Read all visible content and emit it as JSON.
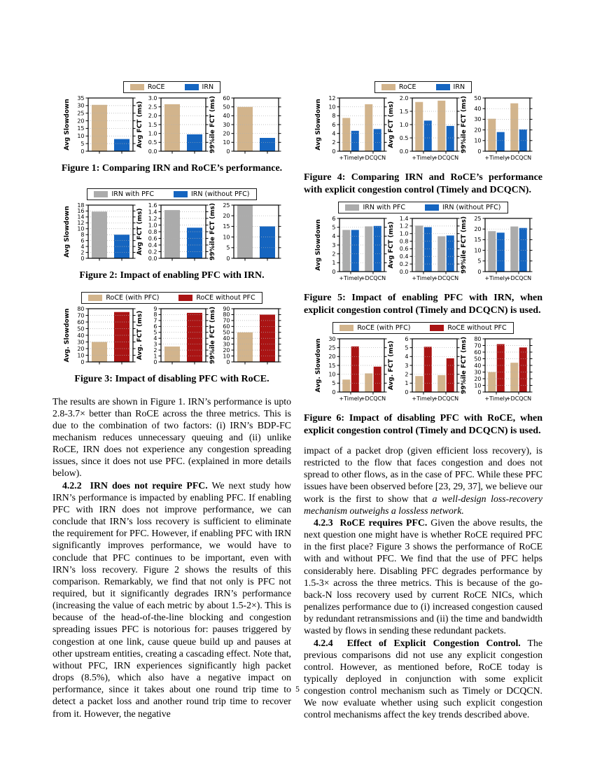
{
  "page_number": "5",
  "colors": {
    "tan": "#d2b48c",
    "blue": "#1565c0",
    "gray": "#ababab",
    "dark_red": "#aa1414"
  },
  "figures": [
    {
      "name": "figure-1",
      "legend": [
        {
          "label": "RoCE",
          "color": "#d2b48c"
        },
        {
          "label": "IRN",
          "color": "#1565c0"
        }
      ],
      "caption": "Figure 1: Comparing IRN and RoCE’s performance.",
      "subplots": [
        {
          "type": "bar",
          "ylabel": "Avg Slowdown",
          "ylim": [
            0,
            35
          ],
          "step": 5,
          "dec": 0,
          "values": [
            30.5,
            8
          ]
        },
        {
          "type": "bar",
          "ylabel": "Avg FCT (ms)",
          "ylim": [
            0,
            3.0
          ],
          "step": 0.5,
          "dec": 1,
          "values": [
            2.65,
            0.95
          ]
        },
        {
          "type": "bar",
          "ylabel": "99%ile FCT (ms)",
          "ylim": [
            0,
            60
          ],
          "step": 10,
          "dec": 0,
          "values": [
            50,
            15
          ]
        }
      ]
    },
    {
      "name": "figure-2",
      "legend": [
        {
          "label": "IRN with PFC",
          "color": "#ababab"
        },
        {
          "label": "IRN (without PFC)",
          "color": "#1565c0"
        }
      ],
      "caption": "Figure 2: Impact of enabling PFC with IRN.",
      "subplots": [
        {
          "type": "bar",
          "ylabel": "Avg Slowdown",
          "ylim": [
            0,
            18
          ],
          "step": 2,
          "dec": 0,
          "values": [
            15.8,
            8
          ]
        },
        {
          "type": "bar",
          "ylabel": "Avg FCT (ms)",
          "ylim": [
            0,
            1.6
          ],
          "step": 0.2,
          "dec": 1,
          "values": [
            1.45,
            0.92
          ]
        },
        {
          "type": "bar",
          "ylabel": "99%ile FCT (ms)",
          "ylim": [
            0,
            25
          ],
          "step": 5,
          "dec": 0,
          "values": [
            24.8,
            15
          ]
        }
      ]
    },
    {
      "name": "figure-3",
      "legend": [
        {
          "label": "RoCE (with PFC)",
          "color": "#d2b48c"
        },
        {
          "label": "RoCE without PFC",
          "color": "#aa1414"
        }
      ],
      "caption": "Figure 3: Impact of disabling PFC with RoCE.",
      "subplots": [
        {
          "type": "bar",
          "ylabel": "Avg. Slowdown",
          "ylim": [
            0,
            80
          ],
          "step": 10,
          "dec": 0,
          "values": [
            30,
            75
          ]
        },
        {
          "type": "bar",
          "ylabel": "Avg. FCT (ms)",
          "ylim": [
            0,
            9
          ],
          "step": 1,
          "dec": 0,
          "values": [
            2.6,
            8.3
          ]
        },
        {
          "type": "bar",
          "ylabel": "99%ile FCT (ms)",
          "ylim": [
            0,
            90
          ],
          "step": 10,
          "dec": 0,
          "values": [
            50,
            80
          ]
        }
      ]
    },
    {
      "name": "figure-4",
      "legend": [
        {
          "label": "RoCE",
          "color": "#d2b48c"
        },
        {
          "label": "IRN",
          "color": "#1565c0"
        }
      ],
      "caption": "Figure 4: Comparing IRN and RoCE’s performance with explicit congestion control (Timely and DCQCN).",
      "subplots": [
        {
          "type": "bar",
          "ylabel": "Avg Slowdown",
          "ylim": [
            0,
            12
          ],
          "step": 2,
          "dec": 0,
          "categories": [
            "+Timely",
            "+DCQCN"
          ],
          "series": [
            {
              "name": "RoCE",
              "values": [
                7.5,
                10.6
              ]
            },
            {
              "name": "IRN",
              "values": [
                4.6,
                5.0
              ]
            }
          ]
        },
        {
          "type": "bar",
          "ylabel": "Avg FCT (ms)",
          "ylim": [
            0,
            2.0
          ],
          "step": 0.5,
          "dec": 1,
          "categories": [
            "+Timely",
            "+DCQCN"
          ],
          "series": [
            {
              "name": "RoCE",
              "values": [
                1.85,
                1.9
              ]
            },
            {
              "name": "IRN",
              "values": [
                1.15,
                0.95
              ]
            }
          ]
        },
        {
          "type": "bar",
          "ylabel": "99%ile FCT (ms)",
          "ylim": [
            0,
            50
          ],
          "step": 10,
          "dec": 0,
          "categories": [
            "+Timely",
            "+DCQCN"
          ],
          "series": [
            {
              "name": "RoCE",
              "values": [
                30.5,
                45
              ]
            },
            {
              "name": "IRN",
              "values": [
                18,
                20.5
              ]
            }
          ]
        }
      ]
    },
    {
      "name": "figure-5",
      "legend": [
        {
          "label": "IRN with PFC",
          "color": "#ababab"
        },
        {
          "label": "IRN (without PFC)",
          "color": "#1565c0"
        }
      ],
      "caption": "Figure 5: Impact of enabling PFC with IRN, when explicit congestion control (Timely and DCQCN) is used.",
      "subplots": [
        {
          "type": "bar",
          "ylabel": "Avg Slowdown",
          "ylim": [
            0,
            6
          ],
          "step": 1,
          "dec": 0,
          "categories": [
            "+Timely",
            "+DCQCN"
          ],
          "series": [
            {
              "name": "IRN with PFC",
              "values": [
                4.7,
                5.1
              ]
            },
            {
              "name": "IRN (without PFC)",
              "values": [
                4.7,
                5.15
              ]
            }
          ]
        },
        {
          "type": "bar",
          "ylabel": "Avg FCT (ms)",
          "ylim": [
            0,
            1.4
          ],
          "step": 0.2,
          "dec": 1,
          "categories": [
            "+Timely",
            "+DCQCN"
          ],
          "series": [
            {
              "name": "IRN with PFC",
              "values": [
                1.21,
                0.93
              ]
            },
            {
              "name": "IRN (without PFC)",
              "values": [
                1.17,
                0.95
              ]
            }
          ]
        },
        {
          "type": "bar",
          "ylabel": "99%ile FCT (ms)",
          "ylim": [
            0,
            25
          ],
          "step": 5,
          "dec": 0,
          "categories": [
            "+Timely",
            "+DCQCN"
          ],
          "series": [
            {
              "name": "IRN with PFC",
              "values": [
                19,
                21.2
              ]
            },
            {
              "name": "IRN (without PFC)",
              "values": [
                18.3,
                20.5
              ]
            }
          ]
        }
      ]
    },
    {
      "name": "figure-6",
      "legend": [
        {
          "label": "RoCE (with PFC)",
          "color": "#d2b48c"
        },
        {
          "label": "RoCE without PFC",
          "color": "#aa1414"
        }
      ],
      "caption": "Figure 6: Impact of disabling PFC with RoCE, when explicit congestion control (Timely and DCQCN) is used.",
      "subplots": [
        {
          "type": "bar",
          "ylabel": "Avg. Slowdown",
          "ylim": [
            0,
            30
          ],
          "step": 5,
          "dec": 0,
          "categories": [
            "+Timely",
            "+DCQCN"
          ],
          "series": [
            {
              "name": "RoCE (with PFC)",
              "values": [
                7,
                10.5
              ]
            },
            {
              "name": "RoCE without PFC",
              "values": [
                25.7,
                14.3
              ]
            }
          ]
        },
        {
          "type": "bar",
          "ylabel": "Avg. FCT (ms)",
          "ylim": [
            0,
            6
          ],
          "step": 1,
          "dec": 0,
          "categories": [
            "+Timely",
            "+DCQCN"
          ],
          "series": [
            {
              "name": "RoCE (with PFC)",
              "values": [
                1.8,
                1.9
              ]
            },
            {
              "name": "RoCE without PFC",
              "values": [
                5.1,
                3.8
              ]
            }
          ]
        },
        {
          "type": "bar",
          "ylabel": "99%ile FCT (ms)",
          "ylim": [
            0,
            80
          ],
          "step": 10,
          "dec": 0,
          "categories": [
            "+Timely",
            "+DCQCN"
          ],
          "series": [
            {
              "name": "RoCE (with PFC)",
              "values": [
                30,
                44
              ]
            },
            {
              "name": "RoCE without PFC",
              "values": [
                72,
                67
              ]
            }
          ]
        }
      ]
    }
  ],
  "left_column": {
    "para_results": "The results are shown in Figure 1. IRN’s performance is upto 2.8-3.7× better than RoCE across the three metrics. This is due to the combination of two factors: (i) IRN’s BDP-FC mechanism reduces unnecessary queuing and (ii) unlike RoCE, IRN does not experience any congestion spreading issues, since it does not use PFC. (explained in more details below).",
    "sec_422": {
      "heading": "4.2.2  IRN does not require PFC.",
      "body": " We next study how IRN’s performance is impacted by enabling PFC. If enabling PFC with IRN does not improve performance, we can conclude that IRN’s loss recovery is sufficient to eliminate the requirement for PFC. However, if enabling PFC with IRN significantly improves performance, we would have to conclude that PFC continues to be important, even with IRN’s loss recovery. Figure 2 shows the results of this comparison. Remarkably, we find that not only is PFC not required, but it significantly degrades IRN’s performance (increasing the value of each metric by about 1.5-2×). This is because of the head-of-the-line blocking and congestion spreading issues PFC is notorious for: pauses triggered by congestion at one link, cause queue build up and pauses at other upstream entities, creating a cascading effect. Note that, without PFC, IRN experiences significantly high packet drops (8.5%), which also have a negative impact on performance, since it takes about one round trip time to detect a packet loss and another round trip time to recover from it. However, the negative"
    }
  },
  "right_column": {
    "para_impact_normal": "impact of a packet drop (given efficient loss recovery), is restricted to the flow that faces congestion and does not spread to other flows, as in the case of PFC. While these PFC issues have been observed before [23, 29, 37], we believe our work is the first to show that ",
    "para_impact_italic": "a well-design loss-recovery mechanism outweighs a lossless network.",
    "sec_423": {
      "heading": "4.2.3  RoCE requires PFC.",
      "body": " Given the above results, the next question one might have is whether RoCE required PFC in the first place? Figure 3 shows the performance of RoCE with and without PFC. We find that the use of PFC helps considerably here. Disabling PFC degrades performance by 1.5-3× across the three metrics. This is because of the go-back-N loss recovery used by current RoCE NICs, which penalizes performance due to (i) increased congestion caused by redundant retransmissions and (ii) the time and bandwidth wasted by flows in sending these redundant packets."
    },
    "sec_424": {
      "heading": "4.2.4  Effect of Explicit Congestion Control.",
      "body": " The previous comparisons did not use any explicit congestion control. However, as mentioned before, RoCE today is typically deployed in conjunction with some explicit congestion control mechanism such as Timely or DCQCN. We now evaluate whether using such explicit congestion control mechanisms affect the key trends described above."
    }
  }
}
